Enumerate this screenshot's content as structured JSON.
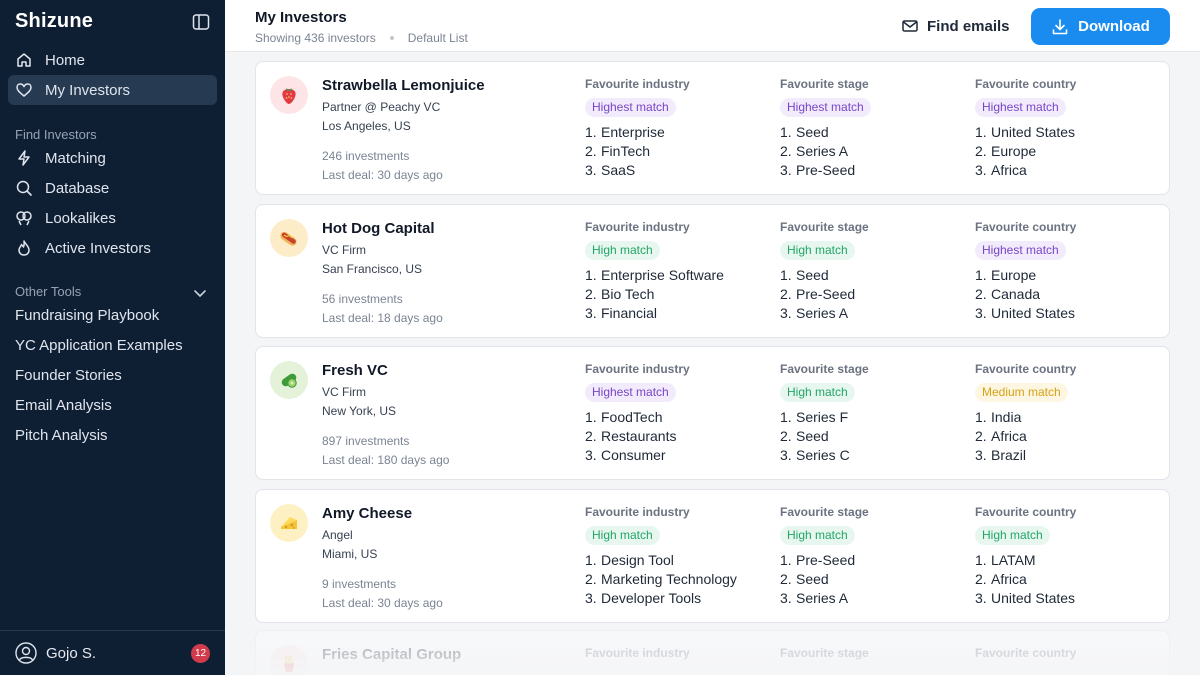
{
  "sidebar": {
    "brand": "Shizune",
    "nav": [
      {
        "label": "Home",
        "icon": "home-icon",
        "active": false
      },
      {
        "label": "My Investors",
        "icon": "heart-icon",
        "active": true
      }
    ],
    "find_label": "Find Investors",
    "find_items": [
      {
        "label": "Matching",
        "icon": "bolt-icon"
      },
      {
        "label": "Database",
        "icon": "search-icon"
      },
      {
        "label": "Lookalikes",
        "icon": "lookalikes-icon"
      },
      {
        "label": "Active Investors",
        "icon": "flame-icon"
      }
    ],
    "tools_label": "Other Tools",
    "tools": [
      "Fundraising Playbook",
      "YC Application Examples",
      "Founder Stories",
      "Email Analysis",
      "Pitch Analysis"
    ],
    "user": {
      "name": "Gojo S.",
      "notifications": "12"
    }
  },
  "header": {
    "title": "My Investors",
    "count": "Showing 436 investors",
    "list": "Default List",
    "find_emails": "Find emails",
    "download": "Download"
  },
  "labels": {
    "industry": "Favourite industry",
    "stage": "Favourite stage",
    "country": "Favourite country"
  },
  "investors": [
    {
      "name": "Strawbella Lemonjuice",
      "role": "Partner @ Peachy VC",
      "location": "Los Angeles, US",
      "investments": "246 investments",
      "last_deal": "Last deal: 30 days ago",
      "icon": "strawberry-icon",
      "industry": {
        "match": "Highest match",
        "level": "highest",
        "items": [
          "Enterprise",
          "FinTech",
          "SaaS"
        ]
      },
      "stage": {
        "match": "Highest match",
        "level": "highest",
        "items": [
          "Seed",
          "Series A",
          "Pre-Seed"
        ]
      },
      "country": {
        "match": "Highest match",
        "level": "highest",
        "items": [
          "United States",
          "Europe",
          "Africa"
        ]
      }
    },
    {
      "name": "Hot Dog Capital",
      "role": "VC Firm",
      "location": "San Francisco, US",
      "investments": "56 investments",
      "last_deal": "Last deal: 18 days ago",
      "icon": "hotdog-icon",
      "industry": {
        "match": "High match",
        "level": "high",
        "items": [
          "Enterprise Software",
          "Bio Tech",
          "Financial"
        ]
      },
      "stage": {
        "match": "High match",
        "level": "high",
        "items": [
          "Seed",
          "Pre-Seed",
          "Series A"
        ]
      },
      "country": {
        "match": "Highest match",
        "level": "highest",
        "items": [
          "Europe",
          "Canada",
          "United States"
        ]
      }
    },
    {
      "name": "Fresh VC",
      "role": "VC Firm",
      "location": "New York, US",
      "investments": "897 investments",
      "last_deal": "Last deal: 180 days ago",
      "icon": "cucumber-icon",
      "industry": {
        "match": "Highest match",
        "level": "highest",
        "items": [
          "FoodTech",
          "Restaurants",
          "Consumer"
        ]
      },
      "stage": {
        "match": "High match",
        "level": "high",
        "items": [
          "Series F",
          "Seed",
          "Series C"
        ]
      },
      "country": {
        "match": "Medium match",
        "level": "medium",
        "items": [
          "India",
          "Africa",
          "Brazil"
        ]
      }
    },
    {
      "name": "Amy Cheese",
      "role": "Angel",
      "location": "Miami, US",
      "investments": "9 investments",
      "last_deal": "Last deal: 30 days ago",
      "icon": "cheese-icon",
      "industry": {
        "match": "High match",
        "level": "high",
        "items": [
          "Design Tool",
          "Marketing Technology",
          "Developer Tools"
        ]
      },
      "stage": {
        "match": "High match",
        "level": "high",
        "items": [
          "Pre-Seed",
          "Seed",
          "Series A"
        ]
      },
      "country": {
        "match": "High match",
        "level": "high",
        "items": [
          "LATAM",
          "Africa",
          "United States"
        ]
      }
    }
  ],
  "partial_investor": {
    "name": "Fries Capital Group",
    "icon": "fries-icon"
  }
}
